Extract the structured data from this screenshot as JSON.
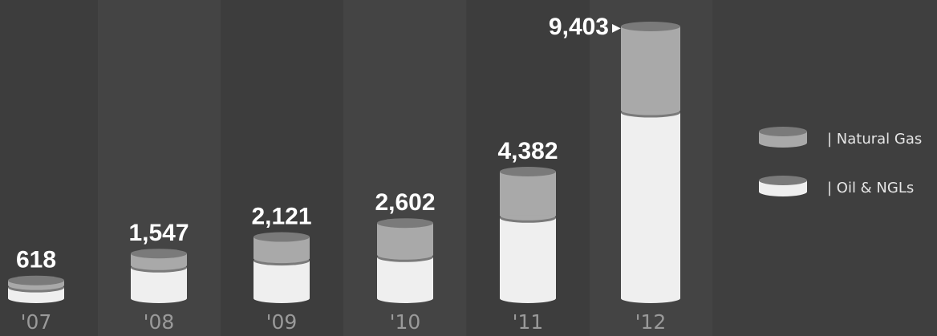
{
  "chart_data": {
    "type": "bar",
    "stacked": true,
    "categories": [
      "'07",
      "'08",
      "'09",
      "'10",
      "'11",
      "'12"
    ],
    "totals_labels": [
      "618",
      "1,547",
      "2,121",
      "2,602",
      "4,382",
      "9,403"
    ],
    "totals": [
      618,
      1547,
      2121,
      2602,
      4382,
      9403
    ],
    "series": [
      {
        "name": "| Oil & NGLs",
        "values": [
          370,
          1060,
          1300,
          1420,
          2780,
          6420
        ]
      },
      {
        "name": "| Natural Gas",
        "values": [
          248,
          487,
          821,
          1182,
          1602,
          2983
        ]
      }
    ],
    "ylim": [
      0,
      9403
    ],
    "highlight_marker": "▶",
    "colors": {
      "background": "#3f3f3f",
      "oil_ngls": "#efefef",
      "natural_gas": "#a9a9a9",
      "separator": "#7a7a7a",
      "value_label": "#ffffff",
      "year_label": "#9a9a9a"
    }
  }
}
